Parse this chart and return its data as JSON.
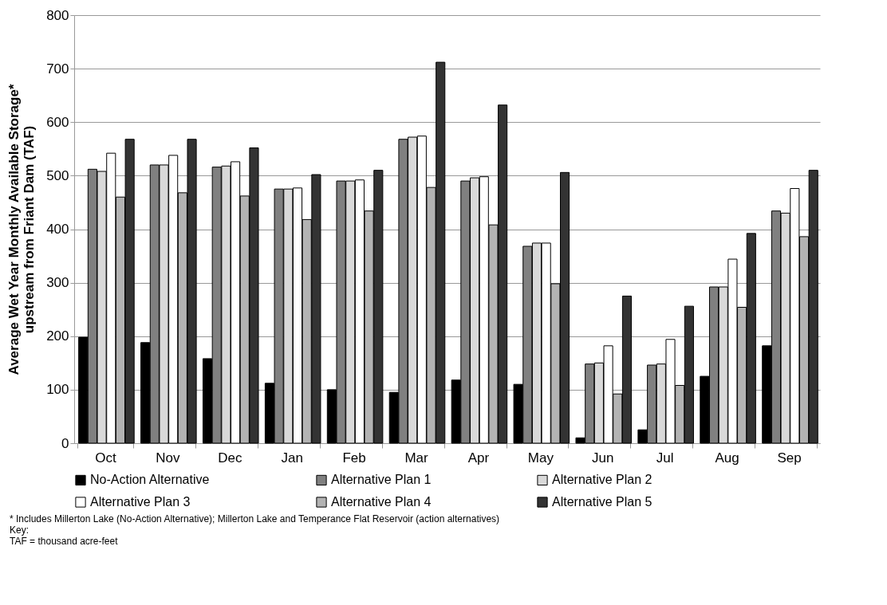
{
  "chart_data": {
    "type": "bar",
    "ylabel": "Average Wet Year Monthly Available Storage*\nupstream from Friant Dam (TAF)",
    "categories": [
      "Oct",
      "Nov",
      "Dec",
      "Jan",
      "Feb",
      "Mar",
      "Apr",
      "May",
      "Jun",
      "Jul",
      "Aug",
      "Sep"
    ],
    "series": [
      {
        "name": "No-Action Alternative",
        "color": "#000000",
        "values": [
          198,
          188,
          158,
          112,
          100,
          95,
          118,
          110,
          10,
          25,
          125,
          182
        ]
      },
      {
        "name": "Alternative Plan 1",
        "color": "#808080",
        "values": [
          512,
          520,
          516,
          475,
          490,
          568,
          490,
          368,
          148,
          146,
          292,
          434
        ]
      },
      {
        "name": "Alternative Plan 2",
        "color": "#d9d9d9",
        "values": [
          508,
          520,
          518,
          475,
          490,
          572,
          496,
          374,
          150,
          148,
          292,
          430
        ]
      },
      {
        "name": "Alternative Plan 3",
        "color": "#ffffff",
        "values": [
          542,
          538,
          526,
          477,
          492,
          574,
          498,
          374,
          182,
          194,
          344,
          476
        ]
      },
      {
        "name": "Alternative Plan 4",
        "color": "#b3b3b3",
        "values": [
          460,
          468,
          462,
          418,
          434,
          478,
          408,
          298,
          92,
          108,
          254,
          386
        ]
      },
      {
        "name": "Alternative Plan 5",
        "color": "#333333",
        "values": [
          568,
          568,
          552,
          502,
          510,
          712,
          632,
          506,
          275,
          256,
          392,
          510
        ]
      }
    ],
    "ylim": [
      0,
      800
    ],
    "yticks": [
      0,
      100,
      200,
      300,
      400,
      500,
      600,
      700,
      800
    ],
    "grid": "y",
    "legend": "bottom",
    "annotations": [
      "* Includes Millerton Lake (No-Action Alternative); Millerton Lake and Temperance Flat Reservoir (action alternatives)",
      "Key:",
      "TAF = thousand acre-feet"
    ]
  }
}
